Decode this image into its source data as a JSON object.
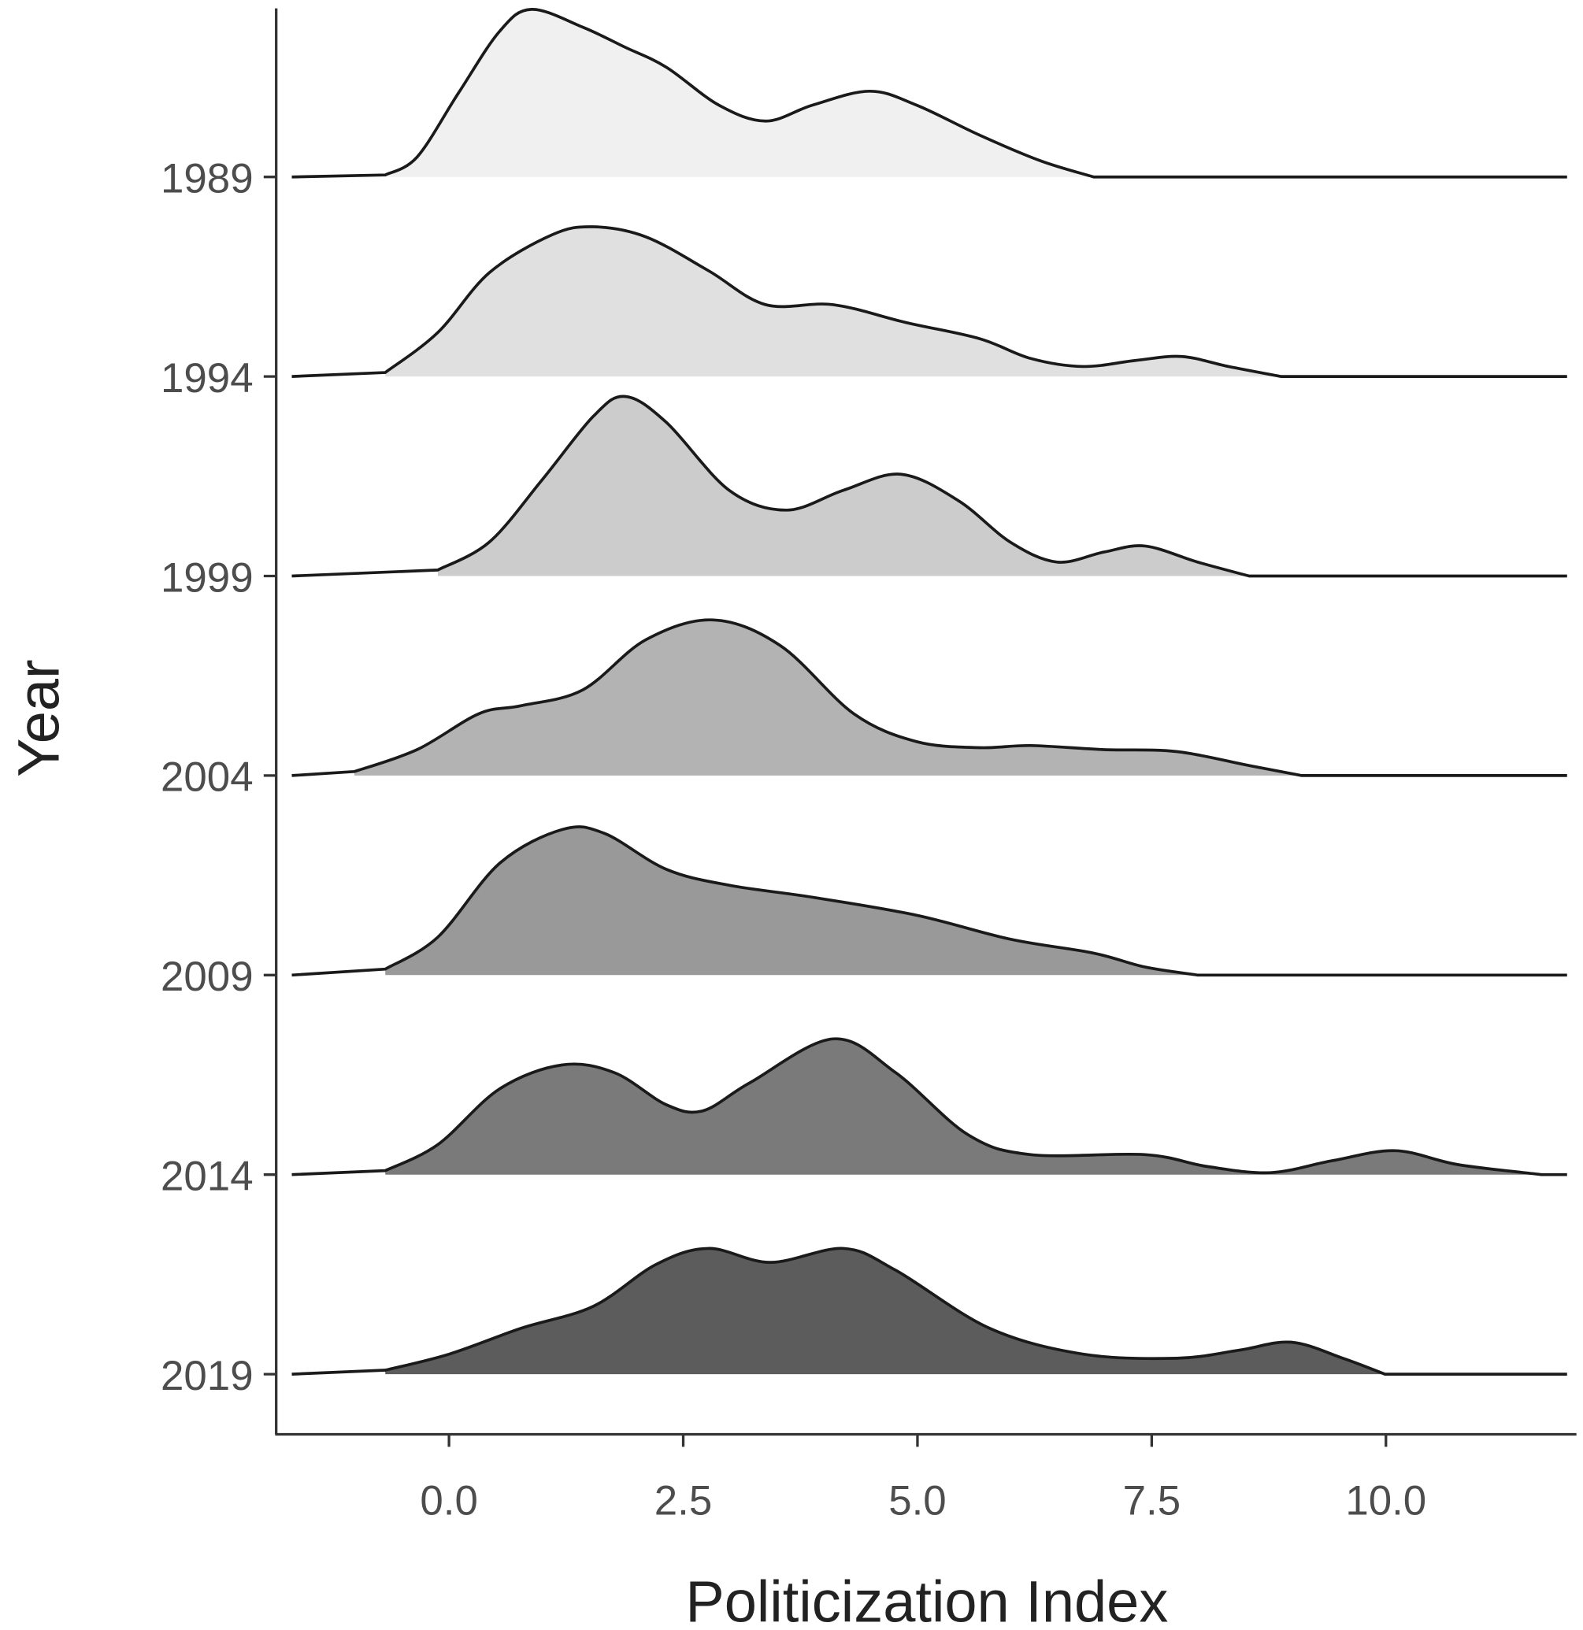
{
  "chart_data": {
    "type": "ridgeline",
    "title": "",
    "xlabel": "Politicization Index",
    "ylabel": "Year",
    "xlim": [
      -1.85,
      11.95
    ],
    "x_ticks": [
      "0.0",
      "2.5",
      "5.0",
      "7.5",
      "10.0"
    ],
    "x_tick_values": [
      0,
      2.5,
      5,
      7.5,
      10
    ],
    "grid": false,
    "legend": "none",
    "density_units": "relative height, 1 = spacing between ridges",
    "series": [
      {
        "name": "1989",
        "color": "#f0f0f0",
        "points": [
          [
            -0.68,
            0.01
          ],
          [
            -0.34,
            0.1
          ],
          [
            0.1,
            0.42
          ],
          [
            0.54,
            0.73
          ],
          [
            0.88,
            0.84
          ],
          [
            1.43,
            0.75
          ],
          [
            1.88,
            0.65
          ],
          [
            2.32,
            0.55
          ],
          [
            2.88,
            0.36
          ],
          [
            3.38,
            0.28
          ],
          [
            3.88,
            0.36
          ],
          [
            4.49,
            0.43
          ],
          [
            4.99,
            0.36
          ],
          [
            5.66,
            0.21
          ],
          [
            6.32,
            0.08
          ],
          [
            6.88,
            0
          ]
        ]
      },
      {
        "name": "1994",
        "color": "#e0e0e0",
        "points": [
          [
            -0.68,
            0.02
          ],
          [
            -0.12,
            0.22
          ],
          [
            0.43,
            0.52
          ],
          [
            1.1,
            0.71
          ],
          [
            1.54,
            0.75
          ],
          [
            2.1,
            0.7
          ],
          [
            2.77,
            0.53
          ],
          [
            3.38,
            0.36
          ],
          [
            4.1,
            0.36
          ],
          [
            4.88,
            0.27
          ],
          [
            5.66,
            0.19
          ],
          [
            6.21,
            0.09
          ],
          [
            6.77,
            0.05
          ],
          [
            7.32,
            0.08
          ],
          [
            7.82,
            0.1
          ],
          [
            8.32,
            0.05
          ],
          [
            8.88,
            0
          ]
        ]
      },
      {
        "name": "1999",
        "color": "#cccccc",
        "points": [
          [
            -0.12,
            0.03
          ],
          [
            0.43,
            0.17
          ],
          [
            0.99,
            0.48
          ],
          [
            1.54,
            0.8
          ],
          [
            1.88,
            0.9
          ],
          [
            2.32,
            0.77
          ],
          [
            2.99,
            0.43
          ],
          [
            3.6,
            0.33
          ],
          [
            4.21,
            0.43
          ],
          [
            4.82,
            0.51
          ],
          [
            5.43,
            0.38
          ],
          [
            5.99,
            0.17
          ],
          [
            6.49,
            0.07
          ],
          [
            6.99,
            0.12
          ],
          [
            7.43,
            0.15
          ],
          [
            7.99,
            0.07
          ],
          [
            8.54,
            0
          ]
        ]
      },
      {
        "name": "2004",
        "color": "#b3b3b3",
        "points": [
          [
            -1.01,
            0.02
          ],
          [
            -0.34,
            0.13
          ],
          [
            0.32,
            0.31
          ],
          [
            0.77,
            0.35
          ],
          [
            1.43,
            0.43
          ],
          [
            2.1,
            0.68
          ],
          [
            2.82,
            0.78
          ],
          [
            3.54,
            0.65
          ],
          [
            4.32,
            0.31
          ],
          [
            4.99,
            0.17
          ],
          [
            5.66,
            0.14
          ],
          [
            6.21,
            0.15
          ],
          [
            6.99,
            0.13
          ],
          [
            7.77,
            0.12
          ],
          [
            8.54,
            0.05
          ],
          [
            9.1,
            0
          ]
        ]
      },
      {
        "name": "2009",
        "color": "#999999",
        "points": [
          [
            -0.68,
            0.03
          ],
          [
            -0.12,
            0.19
          ],
          [
            0.54,
            0.56
          ],
          [
            1.21,
            0.73
          ],
          [
            1.66,
            0.71
          ],
          [
            2.32,
            0.53
          ],
          [
            2.99,
            0.45
          ],
          [
            3.88,
            0.39
          ],
          [
            4.99,
            0.3
          ],
          [
            5.99,
            0.18
          ],
          [
            6.88,
            0.11
          ],
          [
            7.43,
            0.04
          ],
          [
            7.99,
            0
          ]
        ]
      },
      {
        "name": "2014",
        "color": "#7a7a7a",
        "points": [
          [
            -0.68,
            0.02
          ],
          [
            -0.12,
            0.15
          ],
          [
            0.54,
            0.43
          ],
          [
            1.21,
            0.55
          ],
          [
            1.77,
            0.51
          ],
          [
            2.32,
            0.35
          ],
          [
            2.71,
            0.32
          ],
          [
            3.21,
            0.46
          ],
          [
            4.1,
            0.68
          ],
          [
            4.77,
            0.51
          ],
          [
            5.54,
            0.2
          ],
          [
            6.21,
            0.1
          ],
          [
            7.43,
            0.1
          ],
          [
            8.1,
            0.04
          ],
          [
            8.77,
            0.01
          ],
          [
            9.43,
            0.07
          ],
          [
            10.1,
            0.12
          ],
          [
            10.77,
            0.05
          ],
          [
            11.66,
            0
          ]
        ]
      },
      {
        "name": "2019",
        "color": "#5c5c5c",
        "points": [
          [
            -0.68,
            0.02
          ],
          [
            0,
            0.1
          ],
          [
            0.77,
            0.23
          ],
          [
            1.54,
            0.34
          ],
          [
            2.21,
            0.55
          ],
          [
            2.77,
            0.63
          ],
          [
            3.43,
            0.56
          ],
          [
            4.21,
            0.63
          ],
          [
            4.77,
            0.52
          ],
          [
            5.77,
            0.23
          ],
          [
            6.77,
            0.1
          ],
          [
            7.77,
            0.08
          ],
          [
            8.43,
            0.12
          ],
          [
            8.99,
            0.16
          ],
          [
            9.54,
            0.08
          ],
          [
            9.99,
            0
          ]
        ]
      }
    ]
  }
}
